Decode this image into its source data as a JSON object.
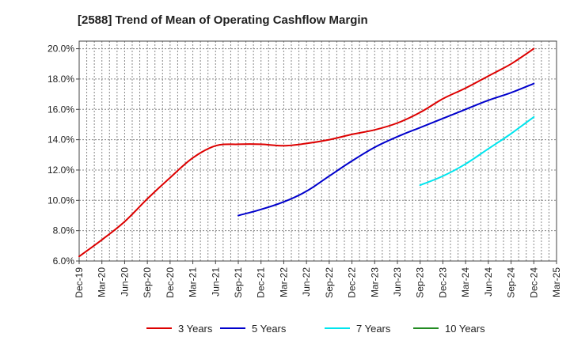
{
  "chart_data": {
    "type": "line",
    "title": "[2588]  Trend of Mean of Operating Cashflow Margin",
    "xlabel": "",
    "ylabel": "",
    "x_tick_labels": [
      "Dec-19",
      "Mar-20",
      "Jun-20",
      "Sep-20",
      "Dec-20",
      "Mar-21",
      "Jun-21",
      "Sep-21",
      "Dec-21",
      "Mar-22",
      "Jun-22",
      "Sep-22",
      "Dec-22",
      "Mar-23",
      "Jun-23",
      "Sep-23",
      "Dec-23",
      "Mar-24",
      "Jun-24",
      "Sep-24",
      "Dec-24",
      "Mar-25"
    ],
    "y_tick_labels": [
      "6.0%",
      "8.0%",
      "10.0%",
      "12.0%",
      "14.0%",
      "16.0%",
      "18.0%",
      "20.0%"
    ],
    "y_ticks": [
      6,
      8,
      10,
      12,
      14,
      16,
      18,
      20
    ],
    "ylim": [
      6,
      20.5
    ],
    "grid": true,
    "legend_position": "bottom",
    "series": [
      {
        "name": "3 Years",
        "color": "#dd0000",
        "start_index": 0,
        "values": [
          6.3,
          7.4,
          8.6,
          10.1,
          11.5,
          12.8,
          13.6,
          13.7,
          13.7,
          13.6,
          13.75,
          14.0,
          14.35,
          14.65,
          15.1,
          15.8,
          16.7,
          17.4,
          18.2,
          19.0,
          20.0
        ]
      },
      {
        "name": "5 Years",
        "color": "#0000cc",
        "start_index": 7,
        "values": [
          9.0,
          9.4,
          9.9,
          10.6,
          11.6,
          12.6,
          13.5,
          14.2,
          14.8,
          15.4,
          16.0,
          16.6,
          17.1,
          17.7
        ]
      },
      {
        "name": "7 Years",
        "color": "#00e5ee",
        "start_index": 15,
        "values": [
          11.0,
          11.6,
          12.4,
          13.4,
          14.4,
          15.5
        ]
      },
      {
        "name": "10 Years",
        "color": "#228b22",
        "start_index": 0,
        "values": []
      }
    ]
  }
}
